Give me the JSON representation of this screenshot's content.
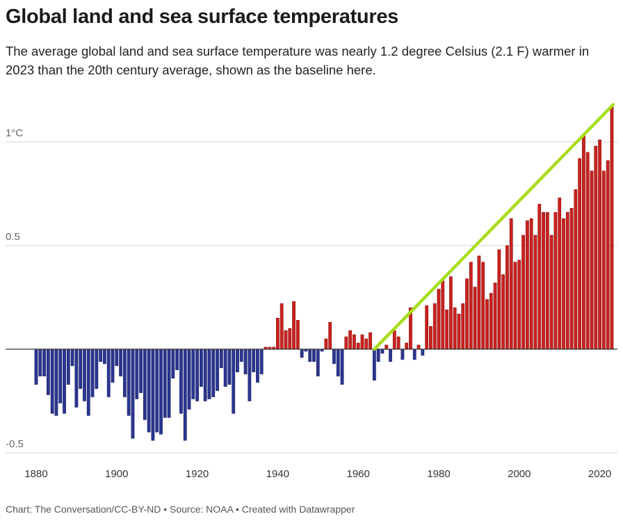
{
  "title": "Global land and sea surface temperatures",
  "subtitle": "The average global land and sea surface temperature was nearly 1.2 degree Celsius (2.1 F) warmer in 2023 than the 20th century average, shown as the baseline here.",
  "footer": "Chart: The Conversation/CC-BY-ND • Source: NOAA • Created with Datawrapper",
  "chart_data": {
    "type": "bar",
    "title": "Global land and sea surface temperatures",
    "xlabel": "",
    "ylabel": "",
    "ylim": [
      -0.5,
      1.2
    ],
    "grid": true,
    "y_ticks": [
      {
        "value": 1,
        "label": "1°C"
      },
      {
        "value": 0.5,
        "label": "0.5"
      },
      {
        "value": -0.5,
        "label": "-0.5"
      }
    ],
    "x_ticks": [
      1880,
      1900,
      1920,
      1940,
      1960,
      1980,
      2000,
      2020
    ],
    "x_start": 1880,
    "colors": {
      "positive": "#c9221f",
      "negative": "#2b3691",
      "trend_line": "#a8dc1c",
      "grid": "#d0d0d0"
    },
    "trend_line": {
      "from": [
        1964,
        0
      ],
      "to": [
        2023,
        1.18
      ]
    },
    "values": [
      -0.17,
      -0.13,
      -0.13,
      -0.22,
      -0.31,
      -0.32,
      -0.26,
      -0.31,
      -0.17,
      -0.08,
      -0.28,
      -0.19,
      -0.25,
      -0.32,
      -0.23,
      -0.19,
      -0.06,
      -0.07,
      -0.23,
      -0.16,
      -0.08,
      -0.13,
      -0.23,
      -0.32,
      -0.43,
      -0.24,
      -0.21,
      -0.34,
      -0.4,
      -0.44,
      -0.4,
      -0.41,
      -0.33,
      -0.33,
      -0.14,
      -0.1,
      -0.31,
      -0.44,
      -0.29,
      -0.24,
      -0.25,
      -0.18,
      -0.25,
      -0.24,
      -0.23,
      -0.2,
      -0.09,
      -0.18,
      -0.17,
      -0.31,
      -0.11,
      -0.06,
      -0.12,
      -0.25,
      -0.11,
      -0.16,
      -0.12,
      0.01,
      0.01,
      0.01,
      0.15,
      0.22,
      0.09,
      0.1,
      0.23,
      0.14,
      -0.04,
      -0.01,
      -0.06,
      -0.06,
      -0.13,
      -0.01,
      0.05,
      0.13,
      -0.07,
      -0.13,
      -0.17,
      0.06,
      0.09,
      0.07,
      0.03,
      0.07,
      0.05,
      0.08,
      -0.15,
      -0.06,
      -0.02,
      0.02,
      -0.06,
      0.09,
      0.06,
      -0.05,
      0.03,
      0.2,
      -0.05,
      0.02,
      -0.03,
      0.21,
      0.11,
      0.22,
      0.29,
      0.33,
      0.19,
      0.35,
      0.2,
      0.17,
      0.22,
      0.34,
      0.42,
      0.3,
      0.45,
      0.42,
      0.24,
      0.27,
      0.32,
      0.48,
      0.36,
      0.5,
      0.63,
      0.42,
      0.43,
      0.55,
      0.62,
      0.63,
      0.55,
      0.7,
      0.66,
      0.66,
      0.55,
      0.66,
      0.73,
      0.63,
      0.66,
      0.68,
      0.77,
      0.92,
      1.03,
      0.95,
      0.86,
      0.98,
      1.01,
      0.86,
      0.91,
      1.17
    ]
  }
}
